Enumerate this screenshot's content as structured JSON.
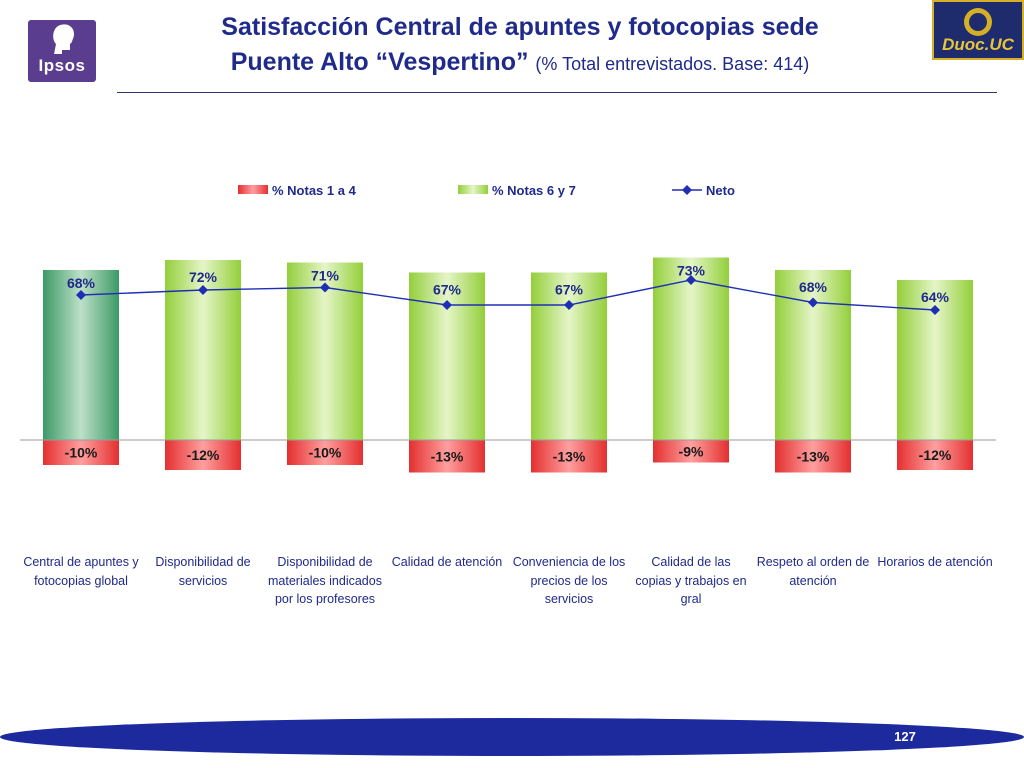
{
  "header": {
    "title_line1": "Satisfacción Central de apuntes y fotocopias sede",
    "title_line2": "Puente Alto “Vespertino”",
    "subtitle": "(% Total entrevistados. Base: 414)"
  },
  "logos": {
    "left": "Ipsos",
    "right": "Duoc.UC"
  },
  "footer": {
    "page_number": "127"
  },
  "colors": {
    "negative": "#e42f2f",
    "positive": "#93cf3a",
    "highlight": "#3c9a66",
    "net_line": "#1f2fb4",
    "title": "#1f2a8a",
    "footer": "#1c2a9e"
  },
  "chart_data": {
    "type": "bar",
    "title": "",
    "xlabel": "",
    "ylabel": "",
    "ylim": [
      -20,
      80
    ],
    "categories": [
      "Central de apuntes y fotocopias global",
      "Disponibilidad de servicios",
      "Disponibilidad de materiales indicados por los profesores",
      "Calidad de atención",
      "Conveniencia de los precios de los servicios",
      "Calidad de las copias y trabajos en gral",
      "Respeto al orden de atención",
      "Horarios de atención"
    ],
    "series": [
      {
        "name": "% Notas 1 a 4",
        "values": [
          -10,
          -12,
          -10,
          -13,
          -13,
          -9,
          -13,
          -12
        ],
        "labels": [
          "-10%",
          "-12%",
          "-10%",
          "-13%",
          "-13%",
          "-9%",
          "-13%",
          "-12%"
        ]
      },
      {
        "name": "% Notas 6 y 7",
        "values": [
          68,
          72,
          71,
          67,
          67,
          73,
          68,
          64
        ],
        "labels": [
          "68%",
          "72%",
          "71%",
          "67%",
          "67%",
          "73%",
          "68%",
          "64%"
        ]
      },
      {
        "name": "Neto",
        "type": "line",
        "values": [
          58,
          60,
          61,
          54,
          54,
          64,
          55,
          52
        ]
      }
    ],
    "legend": [
      "% Notas 1 a 4",
      "% Notas 6 y 7",
      "Neto"
    ],
    "legend_position": "top"
  }
}
